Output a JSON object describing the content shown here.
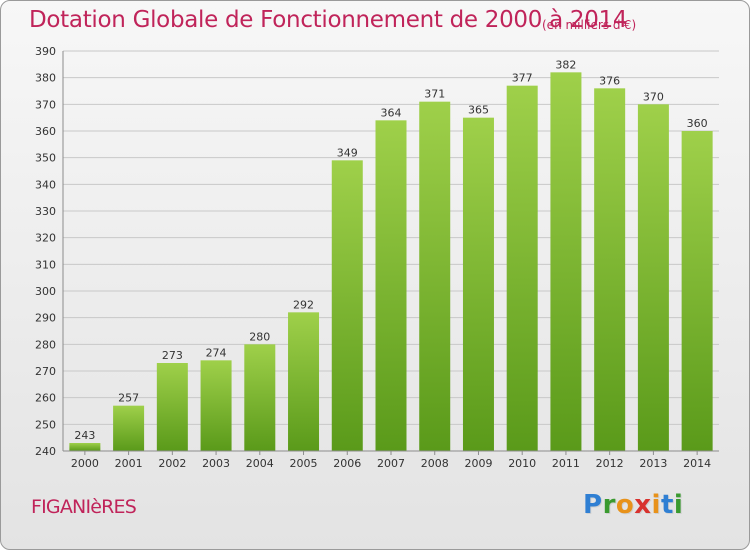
{
  "title": "Dotation Globale de Fonctionnement de 2000 à 2014",
  "unit": "(en milliers d'€)",
  "commune": "FIGANIèRES",
  "logo": {
    "letters": [
      "P",
      "r",
      "o",
      "x",
      "i",
      "t",
      "i"
    ],
    "colors": [
      "#2f7fd3",
      "#3a9a2f",
      "#e8921a",
      "#d8322e",
      "#e8921a",
      "#2f7fd3",
      "#3a9a2f"
    ]
  },
  "colors": {
    "title": "#c0245a",
    "bar_top": "#9fd04a",
    "bar_bottom": "#5a9a1a",
    "gridline": "#c8c8c8",
    "axis_text": "#333333"
  },
  "chart_data": {
    "type": "bar",
    "categories": [
      "2000",
      "2001",
      "2002",
      "2003",
      "2004",
      "2005",
      "2006",
      "2007",
      "2008",
      "2009",
      "2010",
      "2011",
      "2012",
      "2013",
      "2014"
    ],
    "values": [
      243,
      257,
      273,
      274,
      280,
      292,
      349,
      364,
      371,
      365,
      377,
      382,
      376,
      370,
      360
    ],
    "ylim": [
      240,
      390
    ],
    "yticks": [
      240,
      250,
      260,
      270,
      280,
      290,
      300,
      310,
      320,
      330,
      340,
      350,
      360,
      370,
      380,
      390
    ],
    "grid": true,
    "data_labels": true
  }
}
